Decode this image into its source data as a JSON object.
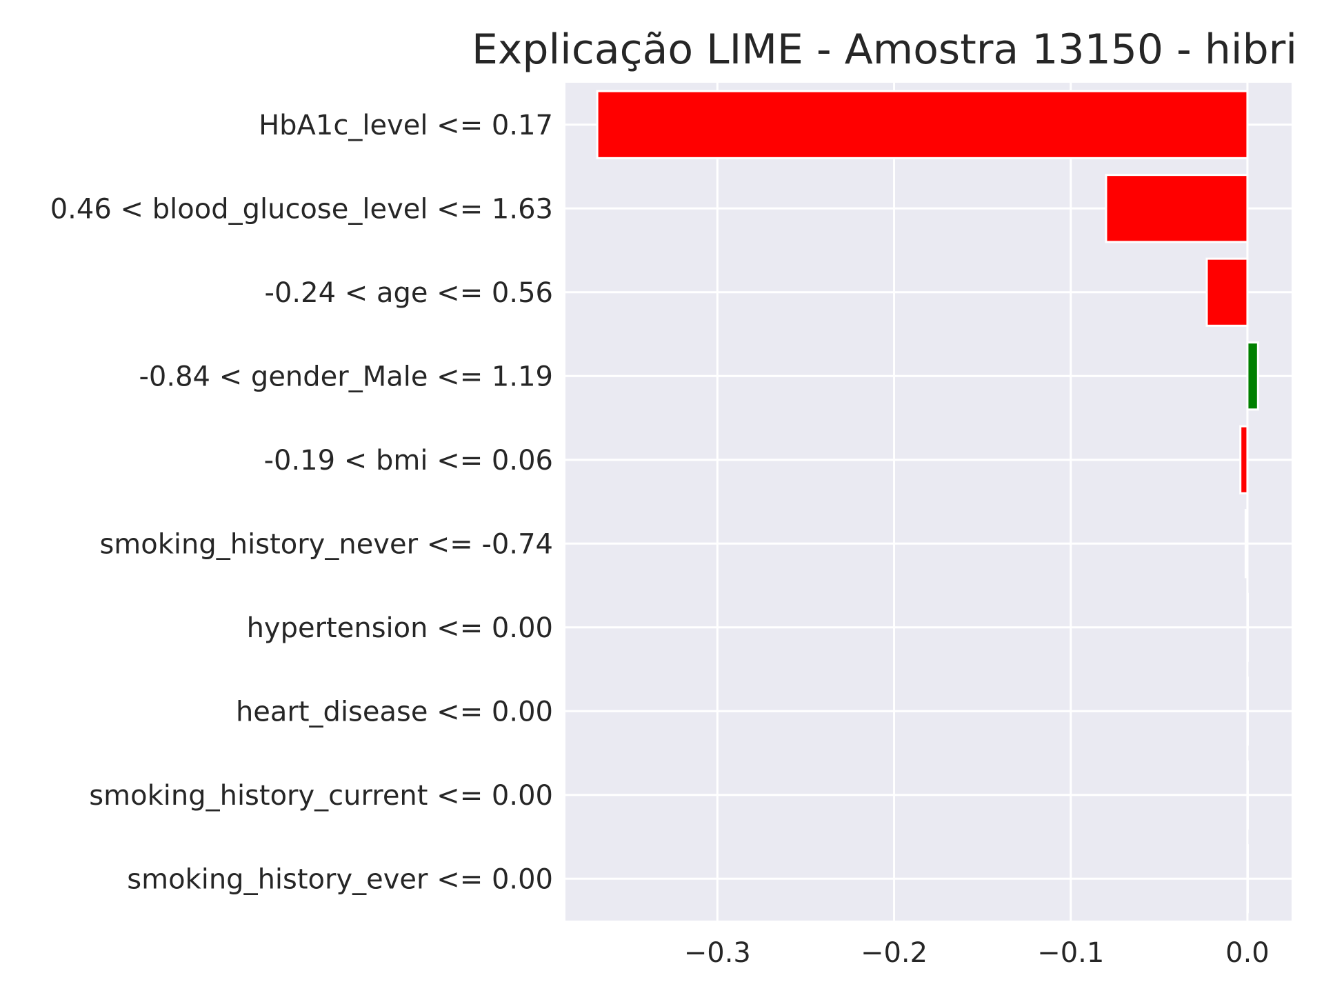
{
  "chart_data": {
    "type": "bar",
    "orientation": "horizontal",
    "title": "Explicação LIME - Amostra 13150 - hibri",
    "xlabel": "",
    "ylabel": "",
    "categories": [
      "HbA1c_level <= 0.17",
      "0.46 < blood_glucose_level <= 1.63",
      "-0.24 < age <= 0.56",
      "-0.84 < gender_Male <= 1.19",
      "-0.19 < bmi <= 0.06",
      "smoking_history_never <= -0.74",
      "hypertension <= 0.00",
      "heart_disease <= 0.00",
      "smoking_history_current <= 0.00",
      "smoking_history_ever <= 0.00"
    ],
    "values": [
      -0.368,
      -0.08,
      -0.023,
      0.006,
      -0.004,
      -0.001,
      0.0,
      0.0,
      0.0,
      0.0
    ],
    "xlim": [
      -0.386,
      0.025
    ],
    "xticks": [
      -0.3,
      -0.2,
      -0.1,
      0.0
    ],
    "xtick_labels": [
      "−0.3",
      "−0.2",
      "−0.1",
      "0.0"
    ],
    "grid": true,
    "legend": "none",
    "colors": {
      "negative": "#ff0000",
      "positive": "#008000",
      "background": "#eaeaf2",
      "grid": "#ffffff",
      "text": "#262626"
    }
  }
}
